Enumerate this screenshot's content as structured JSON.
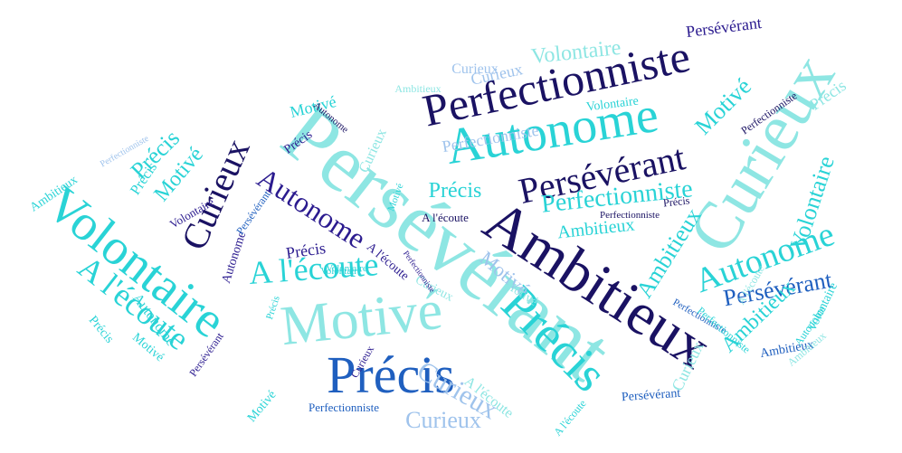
{
  "palette": {
    "navy": "#1a1263",
    "indigo": "#2b1b8f",
    "blue": "#1f5fbf",
    "cyan": "#29d3d6",
    "turquoise": "#3fe0d9",
    "aqua": "#8ee6e3",
    "sky": "#9fc3ec",
    "periwinkle": "#8aa6e8"
  },
  "words": [
    {
      "text": "Perfectionniste",
      "color": "navy"
    },
    {
      "text": "Persévérant",
      "color": "aqua"
    },
    {
      "text": "Ambitieux",
      "color": "navy"
    },
    {
      "text": "Autonome",
      "color": "cyan"
    },
    {
      "text": "Curieux",
      "color": "aqua"
    },
    {
      "text": "Volontaire",
      "color": "cyan"
    },
    {
      "text": "Précis",
      "color": "blue"
    },
    {
      "text": "Motivé",
      "color": "aqua"
    },
    {
      "text": "Précis",
      "color": "cyan"
    },
    {
      "text": "A l'écoute",
      "color": "cyan"
    },
    {
      "text": "Persévérant",
      "color": "navy"
    },
    {
      "text": "Autonome",
      "color": "indigo"
    },
    {
      "text": "Curieux",
      "color": "navy"
    },
    {
      "text": "Perfectionniste",
      "color": "cyan"
    },
    {
      "text": "Curieux",
      "color": "sky"
    },
    {
      "text": "Persévérant",
      "color": "blue"
    },
    {
      "text": "Volontaire",
      "color": "cyan"
    },
    {
      "text": "Motivé",
      "color": "sky"
    },
    {
      "text": "Autonome",
      "color": "cyan"
    },
    {
      "text": "A l'écoute",
      "color": "cyan"
    },
    {
      "text": "Persévérant",
      "color": "indigo"
    },
    {
      "text": "Précis",
      "color": "cyan"
    },
    {
      "text": "Curieux",
      "color": "sky"
    },
    {
      "text": "Perfectionniste",
      "color": "sky"
    },
    {
      "text": "Précis",
      "color": "indigo"
    },
    {
      "text": "Motivé",
      "color": "cyan"
    },
    {
      "text": "Ambitieux",
      "color": "cyan"
    },
    {
      "text": "Perfectionniste",
      "color": "blue"
    },
    {
      "text": "Volontaire",
      "color": "aqua"
    },
    {
      "text": "Motivé",
      "color": "cyan"
    },
    {
      "text": "Ambitieux",
      "color": "cyan"
    },
    {
      "text": "Curieux",
      "color": "sky"
    },
    {
      "text": "Ambitieux",
      "color": "cyan"
    },
    {
      "text": "Motivé",
      "color": "cyan"
    },
    {
      "text": "Persévérant",
      "color": "blue"
    },
    {
      "text": "Volontaire",
      "color": "cyan"
    },
    {
      "text": "Précis",
      "color": "cyan"
    },
    {
      "text": "Perfectionniste",
      "color": "navy"
    },
    {
      "text": "A l'écoute",
      "color": "navy"
    },
    {
      "text": "Autonome",
      "color": "indigo"
    },
    {
      "text": "Précis",
      "color": "indigo"
    },
    {
      "text": "Perfectionniste",
      "color": "blue"
    },
    {
      "text": "Volontaire",
      "color": "cyan"
    },
    {
      "text": "Motivé",
      "color": "cyan"
    },
    {
      "text": "Précis",
      "color": "cyan"
    },
    {
      "text": "Ambitieux",
      "color": "aqua"
    },
    {
      "text": "Volontaire",
      "color": "cyan"
    },
    {
      "text": "Curieux",
      "color": "aqua"
    },
    {
      "text": "Autonome",
      "color": "cyan"
    },
    {
      "text": "Précis",
      "color": "cyan"
    },
    {
      "text": "A l'écoute",
      "color": "aqua"
    },
    {
      "text": "Curieux",
      "color": "sky"
    },
    {
      "text": "A l'écoute",
      "color": "cyan"
    },
    {
      "text": "Précis",
      "color": "aqua"
    },
    {
      "text": "Curieux",
      "color": "indigo"
    },
    {
      "text": "A l'écoute",
      "color": "indigo"
    },
    {
      "text": "Persévérant",
      "color": "indigo"
    },
    {
      "text": "Perfectionniste",
      "color": "cyan"
    },
    {
      "text": "Ambitieux",
      "color": "blue"
    },
    {
      "text": "Volontaire",
      "color": "indigo"
    },
    {
      "text": "Motivé",
      "color": "cyan"
    },
    {
      "text": "Précis",
      "color": "navy"
    },
    {
      "text": "Curieux",
      "color": "aqua"
    },
    {
      "text": "Perfectionniste",
      "color": "navy"
    },
    {
      "text": "Autonome",
      "color": "cyan"
    },
    {
      "text": "Ambitieux",
      "color": "cyan"
    },
    {
      "text": "Motivé",
      "color": "aqua"
    },
    {
      "text": "Curieux",
      "color": "aqua"
    },
    {
      "text": "A l'écoute",
      "color": "aqua"
    },
    {
      "text": "Volontaire",
      "color": "cyan"
    },
    {
      "text": "Persévérant",
      "color": "blue"
    },
    {
      "text": "Ambitieux",
      "color": "aqua"
    },
    {
      "text": "Autonome",
      "color": "navy"
    },
    {
      "text": "Précis",
      "color": "cyan"
    },
    {
      "text": "Perfectionniste",
      "color": "indigo"
    },
    {
      "text": "Motivé",
      "color": "cyan"
    },
    {
      "text": "Perfectionniste",
      "color": "sky"
    }
  ]
}
